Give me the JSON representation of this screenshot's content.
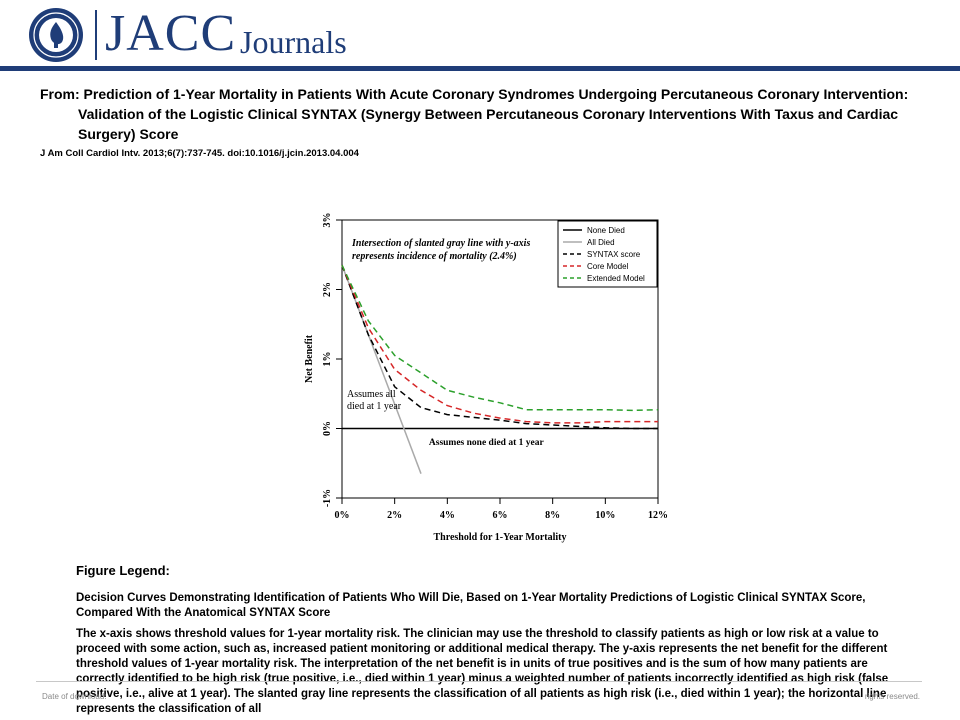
{
  "header": {
    "logo_main": "JACC",
    "logo_sub": "Journals",
    "seal_icon": "acc-seal-icon",
    "brand_color": "#1f3d78"
  },
  "article": {
    "title": "From: Prediction of 1-Year Mortality in Patients With Acute Coronary Syndromes Undergoing Percutaneous Coronary Intervention: Validation of the Logistic Clinical SYNTAX (Synergy Between Percutaneous Coronary Interventions With Taxus and Cardiac Surgery) Score",
    "citation": "J Am Coll Cardiol Intv. 2013;6(7):737-745. doi:10.1016/j.jcin.2013.04.004"
  },
  "figure_legend": {
    "heading": "Figure Legend:",
    "subtitle": "Decision Curves Demonstrating Identification of Patients Who Will Die, Based on 1-Year Mortality Predictions of Logistic Clinical SYNTAX Score, Compared With the Anatomical SYNTAX Score",
    "body": "The x-axis shows threshold values for 1-year mortality risk. The clinician may use the threshold to classify patients as high or low risk at a value to proceed with some action, such as, increased patient monitoring or additional medical therapy. The y-axis represents the net benefit for the different threshold values of 1-year mortality risk. The interpretation of the net benefit is in units of true positives and is the sum of how many patients are correctly identified to be high risk (true positive, i.e., died within 1 year) minus a weighted number of patients incorrectly identified as high risk (false positive, i.e., alive at 1 year). The slanted gray line represents the classification of all patients as high risk (i.e., died within 1 year); the horizontal line represents the classification of all"
  },
  "footer": {
    "left": "Date of download:",
    "right": "rights reserved."
  },
  "chart_data": {
    "type": "line",
    "xlabel": "Threshold for 1-Year Mortality",
    "ylabel": "Net Benefit",
    "xlim": [
      0,
      12
    ],
    "ylim": [
      -1,
      3
    ],
    "x_ticks": [
      0,
      2,
      4,
      6,
      8,
      10,
      12
    ],
    "x_tick_labels": [
      "0%",
      "2%",
      "4%",
      "6%",
      "8%",
      "10%",
      "12%"
    ],
    "y_ticks": [
      -1,
      0,
      1,
      2,
      3
    ],
    "y_tick_labels": [
      "-1%",
      "0%",
      "1%",
      "2%",
      "3%"
    ],
    "grid": false,
    "legend_position": "top-right",
    "series": [
      {
        "name": "None Died",
        "color": "#000000",
        "dash": "solid",
        "x": [
          0,
          12
        ],
        "y": [
          0,
          0
        ]
      },
      {
        "name": "All Died",
        "color": "#aaaaaa",
        "dash": "solid",
        "x": [
          0,
          3
        ],
        "y": [
          2.35,
          -0.65
        ]
      },
      {
        "name": "SYNTAX score",
        "color": "#000000",
        "dash": "dashed",
        "x": [
          0,
          1,
          2,
          3,
          4,
          5,
          6,
          7,
          8,
          9,
          10,
          11,
          12
        ],
        "y": [
          2.35,
          1.35,
          0.6,
          0.3,
          0.2,
          0.16,
          0.12,
          0.07,
          0.05,
          0.03,
          0.01,
          0.0,
          0.0
        ]
      },
      {
        "name": "Core Model",
        "color": "#d62728",
        "dash": "dashed",
        "x": [
          0,
          1,
          2,
          3,
          4,
          5,
          6,
          7,
          8,
          9,
          10,
          11,
          12
        ],
        "y": [
          2.35,
          1.45,
          0.85,
          0.55,
          0.33,
          0.22,
          0.15,
          0.1,
          0.08,
          0.08,
          0.1,
          0.1,
          0.1
        ]
      },
      {
        "name": "Extended Model",
        "color": "#2ca02c",
        "dash": "dashed",
        "x": [
          0,
          1,
          2,
          3,
          4,
          5,
          6,
          7,
          8,
          9,
          10,
          11,
          12
        ],
        "y": [
          2.35,
          1.55,
          1.05,
          0.8,
          0.55,
          0.45,
          0.37,
          0.27,
          0.27,
          0.27,
          0.27,
          0.26,
          0.27
        ]
      }
    ],
    "annotations": [
      {
        "text": "Intersection of slanted gray line with y-axis",
        "style": "bold-italic"
      },
      {
        "text": "represents incidence of mortality (2.4%)",
        "style": "bold-italic"
      },
      {
        "text": "Assumes all",
        "style": "normal"
      },
      {
        "text": "died at 1 year",
        "style": "normal"
      },
      {
        "text": "Assumes none died at 1 year",
        "style": "normal"
      }
    ]
  }
}
